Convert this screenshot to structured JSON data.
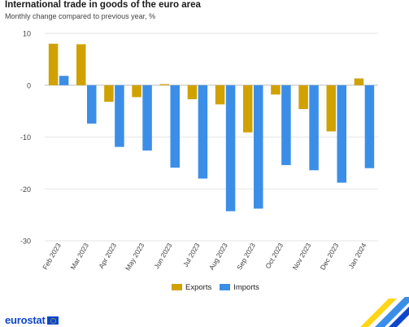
{
  "page": {
    "title": "International trade in goods of the euro area",
    "subtitle": "Monthly change compared to previous year, %",
    "logo_text": "eurostat"
  },
  "colors": {
    "exports": "#d1a100",
    "imports": "#3b8ee8",
    "grid": "#e6e6e6",
    "axis": "#666666",
    "logo": "#0e47cb"
  },
  "chart_data": {
    "type": "bar",
    "title": "International trade in goods of the euro area",
    "subtitle": "Monthly change compared to previous year, %",
    "xlabel": "",
    "ylabel": "",
    "ylim": [
      -30,
      10
    ],
    "yticks": [
      10,
      0,
      -10,
      -20,
      -30
    ],
    "grid": true,
    "legend_position": "bottom",
    "categories": [
      "Feb 2023",
      "Mar 2023",
      "Apr 2023",
      "May 2023",
      "Jun 2023",
      "Jul 2023",
      "Aug 2023",
      "Sep 2023",
      "Oct 2023",
      "Nov 2023",
      "Dec 2023",
      "Jan 2024"
    ],
    "series": [
      {
        "name": "Exports",
        "values": [
          8.0,
          7.9,
          -3.2,
          -2.3,
          0.2,
          -2.7,
          -3.7,
          -9.1,
          -1.8,
          -4.6,
          -8.9,
          1.3
        ]
      },
      {
        "name": "Imports",
        "values": [
          1.8,
          -7.4,
          -11.9,
          -12.6,
          -15.9,
          -18.0,
          -24.3,
          -23.8,
          -15.4,
          -16.4,
          -18.8,
          -16.0
        ]
      }
    ]
  }
}
